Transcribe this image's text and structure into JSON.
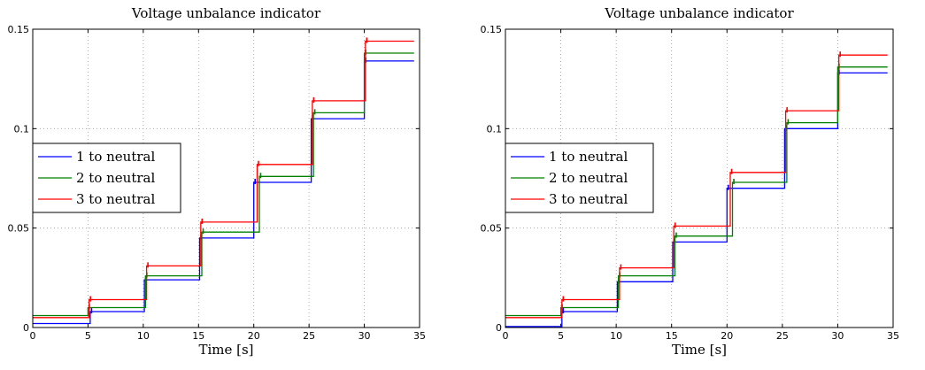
{
  "chart_data": [
    {
      "type": "line",
      "title": "Voltage unbalance indicator",
      "xlabel": "Time [s]",
      "ylabel": "",
      "xlim": [
        0,
        35
      ],
      "ylim": [
        0,
        0.15
      ],
      "xticks": [
        "0",
        "5",
        "10",
        "15",
        "20",
        "25",
        "30",
        "35"
      ],
      "yticks": [
        "0",
        "0.05",
        "0.1",
        "0.15"
      ],
      "grid": true,
      "legend_position": "middle-left",
      "series": [
        {
          "name": "1 to neutral",
          "color": "#0000ff",
          "steps": [
            {
              "t": 0,
              "v": 0.002
            },
            {
              "t": 5.2,
              "v": 0.008
            },
            {
              "t": 10.1,
              "v": 0.024
            },
            {
              "t": 15.1,
              "v": 0.045
            },
            {
              "t": 20.0,
              "v": 0.073
            },
            {
              "t": 25.2,
              "v": 0.105
            },
            {
              "t": 30.0,
              "v": 0.134
            }
          ]
        },
        {
          "name": "2 to neutral",
          "color": "#008000",
          "steps": [
            {
              "t": 0,
              "v": 0.006
            },
            {
              "t": 5.0,
              "v": 0.01
            },
            {
              "t": 10.2,
              "v": 0.026
            },
            {
              "t": 15.3,
              "v": 0.048
            },
            {
              "t": 20.5,
              "v": 0.076
            },
            {
              "t": 25.4,
              "v": 0.108
            },
            {
              "t": 30.0,
              "v": 0.138
            }
          ]
        },
        {
          "name": "3 to neutral",
          "color": "#ff0000",
          "steps": [
            {
              "t": 0,
              "v": 0.005
            },
            {
              "t": 5.1,
              "v": 0.014
            },
            {
              "t": 10.3,
              "v": 0.031
            },
            {
              "t": 15.2,
              "v": 0.053
            },
            {
              "t": 20.3,
              "v": 0.082
            },
            {
              "t": 25.3,
              "v": 0.114
            },
            {
              "t": 30.1,
              "v": 0.144
            }
          ]
        }
      ]
    },
    {
      "type": "line",
      "title": "Voltage unbalance indicator",
      "xlabel": "Time [s]",
      "ylabel": "",
      "xlim": [
        0,
        35
      ],
      "ylim": [
        0,
        0.15
      ],
      "xticks": [
        "0",
        "5",
        "10",
        "15",
        "20",
        "25",
        "30",
        "35"
      ],
      "yticks": [
        "0",
        "0.05",
        "0.1",
        "0.15"
      ],
      "grid": true,
      "legend_position": "middle-left",
      "series": [
        {
          "name": "1 to neutral",
          "color": "#0000ff",
          "steps": [
            {
              "t": 0,
              "v": 0.0005
            },
            {
              "t": 5.1,
              "v": 0.008
            },
            {
              "t": 10.1,
              "v": 0.023
            },
            {
              "t": 15.1,
              "v": 0.043
            },
            {
              "t": 20.0,
              "v": 0.07
            },
            {
              "t": 25.2,
              "v": 0.1
            },
            {
              "t": 30.0,
              "v": 0.128
            }
          ]
        },
        {
          "name": "2 to neutral",
          "color": "#008000",
          "steps": [
            {
              "t": 0,
              "v": 0.006
            },
            {
              "t": 5.0,
              "v": 0.01
            },
            {
              "t": 10.2,
              "v": 0.026
            },
            {
              "t": 15.3,
              "v": 0.046
            },
            {
              "t": 20.5,
              "v": 0.073
            },
            {
              "t": 25.4,
              "v": 0.103
            },
            {
              "t": 30.0,
              "v": 0.131
            }
          ]
        },
        {
          "name": "3 to neutral",
          "color": "#ff0000",
          "steps": [
            {
              "t": 0,
              "v": 0.005
            },
            {
              "t": 5.1,
              "v": 0.014
            },
            {
              "t": 10.3,
              "v": 0.03
            },
            {
              "t": 15.2,
              "v": 0.051
            },
            {
              "t": 20.3,
              "v": 0.078
            },
            {
              "t": 25.3,
              "v": 0.109
            },
            {
              "t": 30.1,
              "v": 0.137
            }
          ]
        }
      ]
    }
  ]
}
